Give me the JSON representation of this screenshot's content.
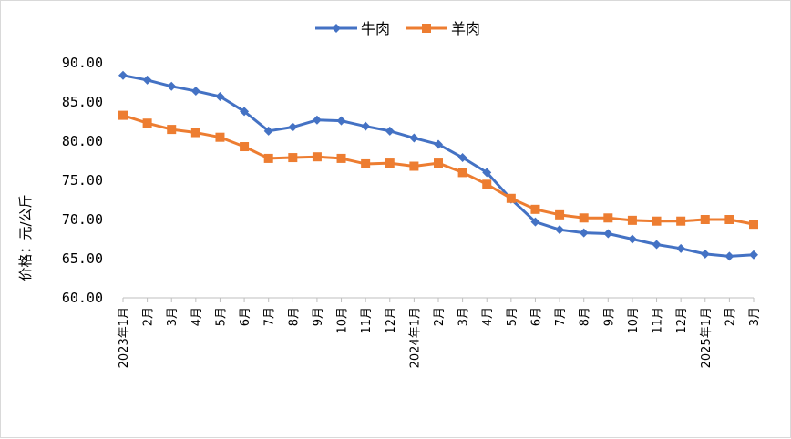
{
  "chart_data": {
    "type": "line",
    "title": "",
    "xlabel": "",
    "ylabel": "价格：元/公斤",
    "ylim": [
      60,
      90
    ],
    "yticks": [
      "60.00",
      "65.00",
      "70.00",
      "75.00",
      "80.00",
      "85.00",
      "90.00"
    ],
    "grid": false,
    "legend_position": "top",
    "categories": [
      "2023年1月",
      "2月",
      "3月",
      "4月",
      "5月",
      "6月",
      "7月",
      "8月",
      "9月",
      "10月",
      "11月",
      "12月",
      "2024年1月",
      "2月",
      "3月",
      "4月",
      "5月",
      "6月",
      "7月",
      "8月",
      "9月",
      "10月",
      "11月",
      "12月",
      "2025年1月",
      "2月",
      "3月"
    ],
    "series": [
      {
        "name": "牛肉",
        "color": "#4472C4",
        "marker": "diamond",
        "values": [
          88.4,
          87.8,
          87.0,
          86.4,
          85.7,
          83.8,
          81.3,
          81.8,
          82.7,
          82.6,
          81.9,
          81.3,
          80.4,
          79.6,
          77.9,
          76.0,
          72.6,
          69.7,
          68.7,
          68.3,
          68.2,
          67.5,
          66.8,
          66.3,
          65.6,
          65.3,
          65.5
        ]
      },
      {
        "name": "羊肉",
        "color": "#ED7D31",
        "marker": "square",
        "values": [
          83.3,
          82.3,
          81.5,
          81.1,
          80.5,
          79.3,
          77.8,
          77.9,
          78.0,
          77.8,
          77.1,
          77.2,
          76.8,
          77.2,
          76.0,
          74.5,
          72.7,
          71.3,
          70.6,
          70.2,
          70.2,
          69.9,
          69.8,
          69.8,
          70.0,
          70.0,
          69.4
        ]
      }
    ]
  }
}
